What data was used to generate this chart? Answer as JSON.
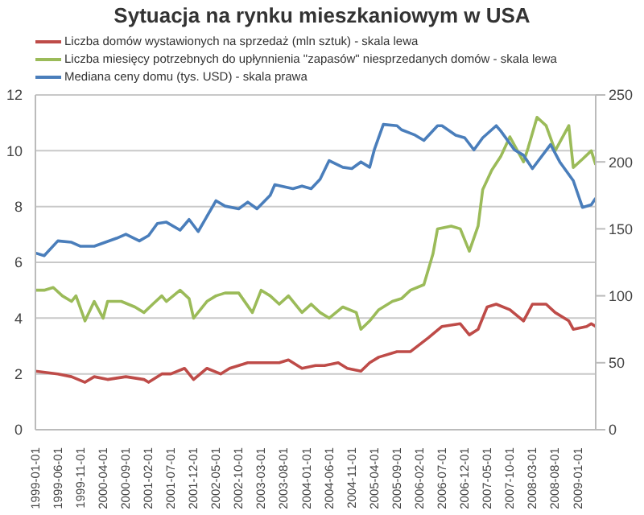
{
  "chart_data": {
    "type": "line",
    "title": "Sytuacja na rynku mieszkaniowym w USA",
    "legend": "top",
    "grid": "y",
    "marker": "none",
    "line_style": "solid",
    "xlim": [
      "1999-01-01",
      "2009-05-01"
    ],
    "xticks": [
      "1999-01-01",
      "1999-06-01",
      "1999-11-01",
      "2000-04-01",
      "2000-09-01",
      "2001-02-01",
      "2001-07-01",
      "2001-12-01",
      "2002-05-01",
      "2002-10-01",
      "2003-03-01",
      "2003-08-01",
      "2004-01-01",
      "2004-06-01",
      "2004-11-01",
      "2005-04-01",
      "2005-09-01",
      "2006-02-01",
      "2006-07-01",
      "2006-12-01",
      "2007-05-01",
      "2007-10-01",
      "2008-03-01",
      "2008-08-01",
      "2009-01-01"
    ],
    "ylim": [
      0,
      12
    ],
    "yticks": [
      0,
      2,
      4,
      6,
      8,
      10,
      12
    ],
    "y2lim": [
      0,
      250
    ],
    "y2ticks": [
      0,
      50,
      100,
      150,
      200,
      250
    ],
    "series": [
      {
        "name": "Liczba domów wystawionych na sprzedaż (mln sztuk) - skala lewa",
        "color": "#be4b48",
        "x": [
          "1999-01",
          "1999-06",
          "1999-09",
          "1999-12",
          "2000-02",
          "2000-05",
          "2000-09",
          "2001-01",
          "2001-02",
          "2001-05",
          "2001-07",
          "2001-10",
          "2001-12",
          "2002-03",
          "2002-06",
          "2002-08",
          "2002-12",
          "2003-03",
          "2003-07",
          "2003-09",
          "2003-12",
          "2004-03",
          "2004-05",
          "2004-08",
          "2004-10",
          "2005-01",
          "2005-03",
          "2005-05",
          "2005-09",
          "2005-12",
          "2006-04",
          "2006-07",
          "2006-11",
          "2007-01",
          "2007-03",
          "2007-05",
          "2007-07",
          "2007-10",
          "2008-01",
          "2008-03",
          "2008-06",
          "2008-08",
          "2008-11",
          "2008-12",
          "2009-03",
          "2009-04",
          "2009-05"
        ],
        "values": [
          2.1,
          2.0,
          1.9,
          1.7,
          1.9,
          1.8,
          1.9,
          1.8,
          1.7,
          2.0,
          2.0,
          2.2,
          1.8,
          2.2,
          2.0,
          2.2,
          2.4,
          2.4,
          2.4,
          2.5,
          2.2,
          2.3,
          2.3,
          2.4,
          2.2,
          2.1,
          2.4,
          2.6,
          2.8,
          2.8,
          3.3,
          3.7,
          3.8,
          3.4,
          3.6,
          4.4,
          4.5,
          4.3,
          3.9,
          4.5,
          4.5,
          4.2,
          3.9,
          3.6,
          3.7,
          3.8,
          3.7
        ]
      },
      {
        "name": "Liczba miesięcy potrzebnych do upłynnienia \"zapasów\" niesprzedanych domów - skala lewa",
        "color": "#9bbb59",
        "x": [
          "1999-01",
          "1999-03",
          "1999-05",
          "1999-07",
          "1999-09",
          "1999-10",
          "1999-12",
          "2000-02",
          "2000-04",
          "2000-05",
          "2000-08",
          "2000-11",
          "2001-01",
          "2001-03",
          "2001-05",
          "2001-06",
          "2001-09",
          "2001-11",
          "2001-12",
          "2002-03",
          "2002-05",
          "2002-07",
          "2002-10",
          "2003-01",
          "2003-03",
          "2003-05",
          "2003-07",
          "2003-09",
          "2003-12",
          "2004-02",
          "2004-04",
          "2004-06",
          "2004-09",
          "2004-12",
          "2005-01",
          "2005-03",
          "2005-05",
          "2005-08",
          "2005-10",
          "2005-12",
          "2006-03",
          "2006-05",
          "2006-06",
          "2006-09",
          "2006-11",
          "2007-01",
          "2007-03",
          "2007-04",
          "2007-06",
          "2007-08",
          "2007-10",
          "2008-01",
          "2008-02",
          "2008-04",
          "2008-06",
          "2008-08",
          "2008-11",
          "2008-12",
          "2009-02",
          "2009-04",
          "2009-05"
        ],
        "values": [
          5.0,
          5.0,
          5.1,
          4.8,
          4.6,
          4.8,
          3.9,
          4.6,
          4.0,
          4.6,
          4.6,
          4.4,
          4.2,
          4.5,
          4.8,
          4.6,
          5.0,
          4.7,
          4.0,
          4.6,
          4.8,
          4.9,
          4.9,
          4.2,
          5.0,
          4.8,
          4.5,
          4.8,
          4.2,
          4.5,
          4.2,
          4.0,
          4.4,
          4.2,
          3.6,
          3.9,
          4.3,
          4.6,
          4.7,
          5.0,
          5.2,
          6.3,
          7.2,
          7.3,
          7.2,
          6.4,
          7.3,
          8.6,
          9.3,
          9.8,
          10.5,
          9.6,
          10.1,
          11.2,
          10.9,
          10.0,
          10.9,
          9.4,
          9.7,
          10.0,
          9.5
        ]
      },
      {
        "name": "Mediana ceny domu (tys. USD) - skala prawa",
        "color": "#4a7ebb",
        "axis": "y2",
        "x": [
          "1999-01",
          "1999-03",
          "1999-06",
          "1999-09",
          "1999-11",
          "2000-02",
          "2000-07",
          "2000-09",
          "2000-12",
          "2001-02",
          "2001-04",
          "2001-06",
          "2001-09",
          "2001-11",
          "2002-01",
          "2002-05",
          "2002-07",
          "2002-10",
          "2002-12",
          "2003-02",
          "2003-05",
          "2003-06",
          "2003-10",
          "2003-12",
          "2004-02",
          "2004-04",
          "2004-06",
          "2004-09",
          "2004-11",
          "2005-01",
          "2005-03",
          "2005-04",
          "2005-06",
          "2005-09",
          "2005-10",
          "2006-01",
          "2006-03",
          "2006-06",
          "2006-07",
          "2006-10",
          "2006-12",
          "2007-02",
          "2007-04",
          "2007-07",
          "2007-08",
          "2007-11",
          "2008-01",
          "2008-03",
          "2008-07",
          "2008-09",
          "2008-12",
          "2009-02",
          "2009-04",
          "2009-05"
        ],
        "values": [
          132,
          130,
          141,
          140,
          137,
          137,
          143,
          146,
          141,
          145,
          154,
          155,
          149,
          157,
          148,
          171,
          167,
          165,
          170,
          165,
          175,
          183,
          180,
          182,
          180,
          187,
          201,
          196,
          195,
          200,
          196,
          209,
          228,
          227,
          224,
          220,
          216,
          227,
          227,
          220,
          218,
          209,
          218,
          227,
          223,
          209,
          205,
          195,
          213,
          200,
          186,
          166,
          168,
          173
        ]
      }
    ]
  }
}
